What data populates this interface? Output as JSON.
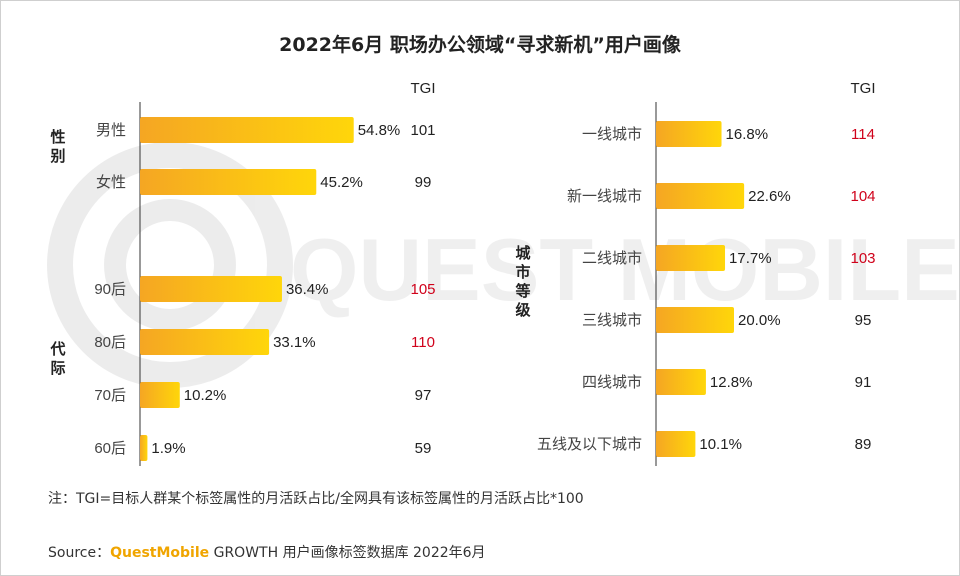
{
  "title": "2022年6月 职场办公领域“寻求新机”用户画像",
  "tgi_label": "TGI",
  "watermark": "QUEST MOBILE",
  "note": "注：TGI=目标人群某个标签属性的月活跃占比/全网具有该标签属性的月活跃占比*100",
  "source": {
    "prefix": "Source：",
    "brand": "QuestMobile",
    "suffix": " GROWTH 用户画像标签数据库 2022年6月"
  },
  "colors": {
    "bar_start": "#f5a623",
    "bar_end": "#ffd60a",
    "tgi_high": "#d0021b",
    "tgi_normal": "#222222"
  },
  "chart_data": [
    {
      "type": "bar",
      "orientation": "horizontal",
      "groups": [
        {
          "name": "性别",
          "categories": [
            "男性",
            "女性"
          ],
          "values": [
            54.8,
            45.2
          ],
          "tgi": [
            101,
            99
          ],
          "tgi_highlight": [
            false,
            false
          ]
        },
        {
          "name": "代际",
          "categories": [
            "90后",
            "80后",
            "70后",
            "60后"
          ],
          "values": [
            36.4,
            33.1,
            10.2,
            1.9
          ],
          "tgi": [
            105,
            110,
            97,
            59
          ],
          "tgi_highlight": [
            true,
            true,
            false,
            false
          ]
        }
      ],
      "unit": "%"
    },
    {
      "type": "bar",
      "orientation": "horizontal",
      "groups": [
        {
          "name": "城市等级",
          "categories": [
            "一线城市",
            "新一线城市",
            "二线城市",
            "三线城市",
            "四线城市",
            "五线及以下城市"
          ],
          "values": [
            16.8,
            22.6,
            17.7,
            20.0,
            12.8,
            10.1
          ],
          "tgi": [
            114,
            104,
            103,
            95,
            91,
            89
          ],
          "tgi_highlight": [
            true,
            true,
            true,
            false,
            false,
            false
          ]
        }
      ],
      "unit": "%"
    }
  ]
}
